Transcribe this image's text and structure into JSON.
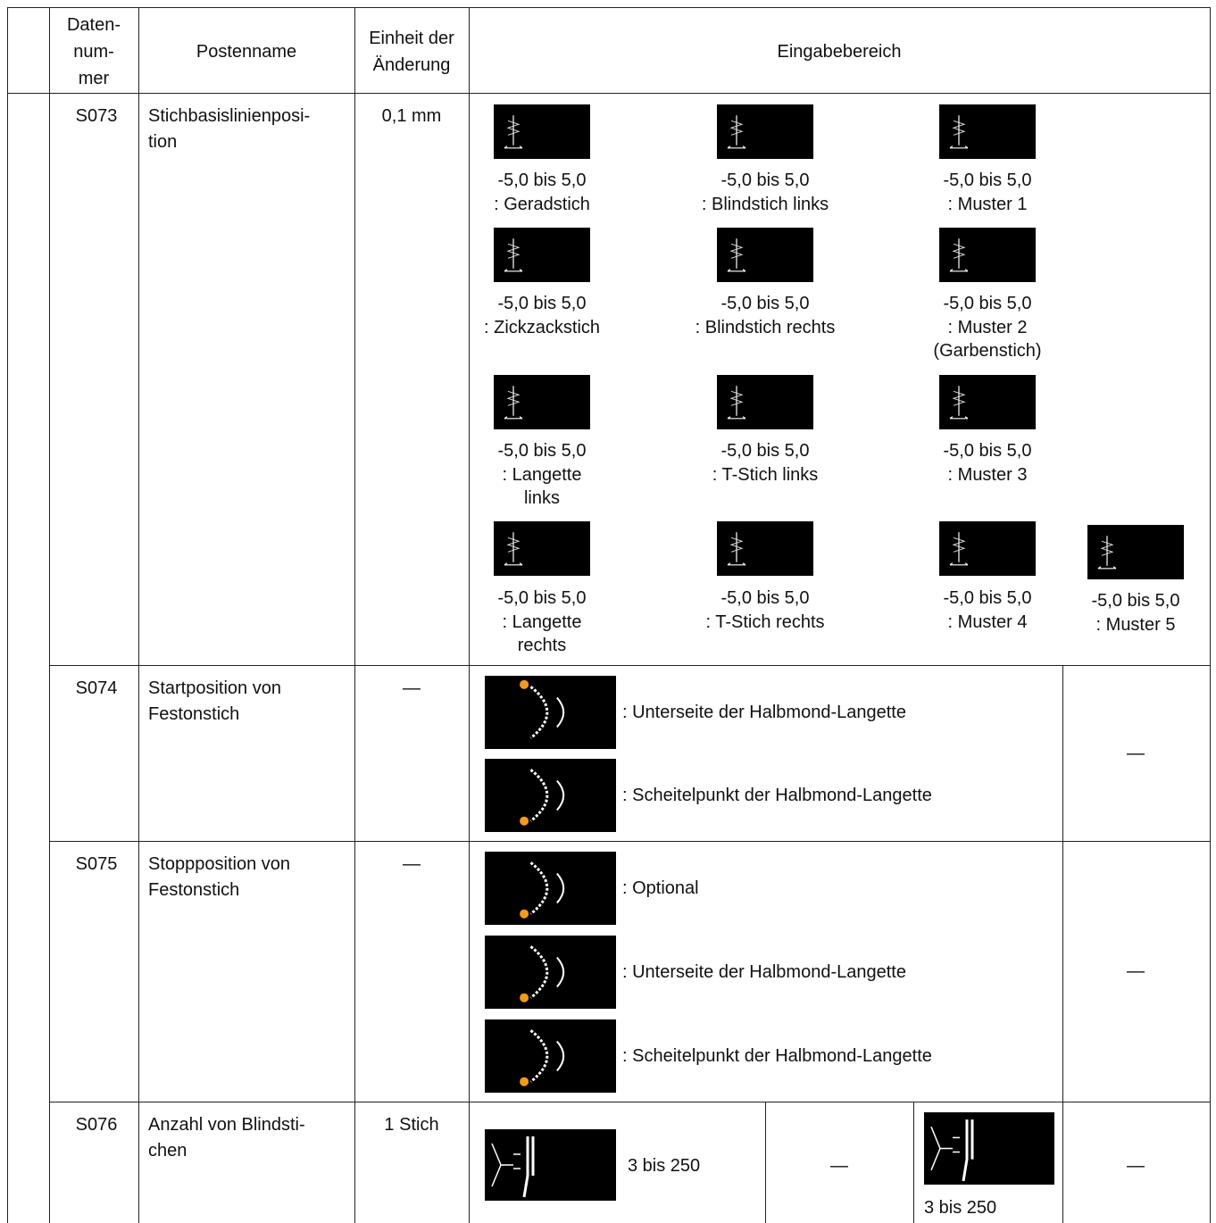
{
  "header": {
    "number": [
      "Daten-",
      "num-",
      "mer"
    ],
    "name": "Postenname",
    "unit": [
      "Einheit der",
      "Änderung"
    ],
    "input": "Eingabebereich"
  },
  "rows": [
    {
      "number": "S073",
      "name": [
        "Stichbasislinienposi-",
        "tion"
      ],
      "unit": "0,1 mm",
      "options": [
        {
          "range": "-5,0 bis 5,0",
          "label": [
            ": Geradstich"
          ]
        },
        {
          "range": "-5,0 bis 5,0",
          "label": [
            ": Blindstich links"
          ]
        },
        {
          "range": "-5,0 bis 5,0",
          "label": [
            ": Muster 1"
          ]
        },
        {
          "range": "-5,0 bis 5,0",
          "label": [
            ": Zickzackstich"
          ]
        },
        {
          "range": "-5,0 bis 5,0",
          "label": [
            ": Blindstich rechts"
          ]
        },
        {
          "range": "-5,0 bis 5,0",
          "label": [
            ": Muster 2",
            "(Garbenstich)"
          ]
        },
        {
          "range": "-5,0 bis 5,0",
          "label": [
            ": Langette",
            "links"
          ]
        },
        {
          "range": "-5,0 bis 5,0",
          "label": [
            ": T-Stich links"
          ]
        },
        {
          "range": "-5,0 bis 5,0",
          "label": [
            ": Muster 3"
          ]
        },
        {
          "range": "-5,0 bis 5,0",
          "label": [
            ": Langette",
            "rechts"
          ]
        },
        {
          "range": "-5,0 bis 5,0",
          "label": [
            ": T-Stich rechts"
          ]
        },
        {
          "range": "-5,0 bis 5,0",
          "label": [
            ": Muster 4"
          ]
        },
        {
          "range": "-5,0 bis 5,0",
          "label": [
            ": Muster 5"
          ]
        }
      ]
    },
    {
      "number": "S074",
      "name": [
        "Startposition von",
        "Festonstich"
      ],
      "unit": "—",
      "options": [
        {
          "label": ": Unterseite der Halbmond-Langette"
        },
        {
          "label": ": Scheitelpunkt der Halbmond-Langette"
        }
      ],
      "extra": "—"
    },
    {
      "number": "S075",
      "name": [
        "Stoppposition von",
        "Festonstich"
      ],
      "unit": "—",
      "options": [
        {
          "label": ": Optional"
        },
        {
          "label": ": Unterseite der Halbmond-Langette"
        },
        {
          "label": ": Scheitelpunkt der Halbmond-Langette"
        }
      ],
      "extra": "—"
    },
    {
      "number": "S076",
      "name": [
        "Anzahl von Blindsti-",
        "chen"
      ],
      "unit": "1 Stich",
      "cells": [
        "3 bis 250",
        "—",
        "3 bis 250",
        "—"
      ]
    }
  ]
}
